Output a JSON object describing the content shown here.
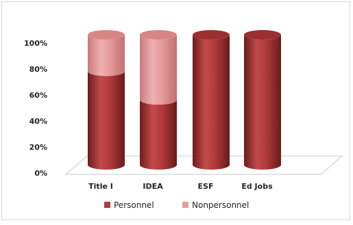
{
  "chart_data": {
    "type": "bar",
    "stacked": true,
    "percent_stacked": true,
    "style": "3d-cylinder",
    "title": "",
    "xlabel": "",
    "ylabel": "",
    "categories": [
      "Title I",
      "IDEA",
      "ESF",
      "Ed Jobs"
    ],
    "series": [
      {
        "name": "Personnel",
        "values": [
          72,
          50,
          100,
          100
        ],
        "color": "#b03a3a"
      },
      {
        "name": "Nonpersonnel",
        "values": [
          28,
          50,
          0,
          0
        ],
        "color": "#e59a9a"
      }
    ],
    "ylim": [
      0,
      100
    ],
    "yticks": [
      "0%",
      "20%",
      "40%",
      "60%",
      "80%",
      "100%"
    ],
    "grid": false,
    "legend_position": "bottom"
  }
}
